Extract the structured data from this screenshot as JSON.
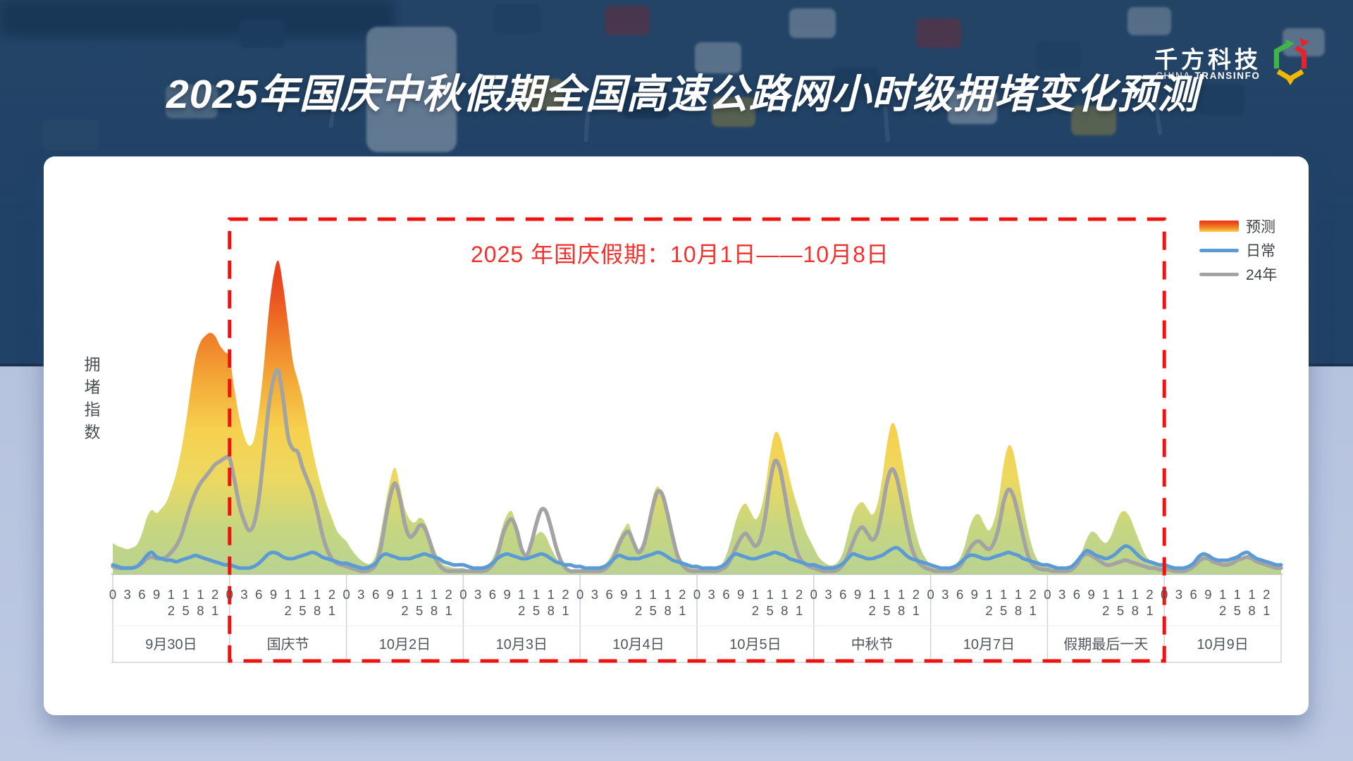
{
  "page": {
    "title": "2025年国庆中秋假期全国高速公路网小时级拥堵变化预测",
    "brand": {
      "name_cn": "千方科技",
      "name_en_light": "CHINA",
      "name_en_bold": "TRANSINFO"
    }
  },
  "chart": {
    "y_axis_label": "拥堵指数",
    "highlight_caption": "2025 年国庆假期：10月1日——10月8日",
    "hour_ticks": [
      "0",
      "3",
      "6",
      "9",
      "12",
      "15",
      "18",
      "21"
    ],
    "legend": [
      {
        "label": "预测",
        "type": "gradient"
      },
      {
        "label": "日常",
        "type": "line",
        "color": "#5b9bd5"
      },
      {
        "label": "24年",
        "type": "line",
        "color": "#a3a3a3"
      }
    ],
    "colors": {
      "highlight_red": "#ee1311",
      "caption_red": "#f2302c",
      "forecast_top": "#e93114",
      "forecast_orange": "#ef7a22",
      "forecast_yellow": "#f6cf49",
      "forecast_green": "#b7d18e",
      "daily_blue": "#5b9bd5",
      "y24_gray": "#a3a3a3"
    }
  },
  "chart_data": {
    "type": "area",
    "title": "2025年国庆中秋假期全国高速公路网小时级拥堵变化预测",
    "ylabel": "拥堵指数",
    "ylim": [
      0,
      10
    ],
    "hours_per_day": 24,
    "hour_tick_values": [
      0,
      3,
      6,
      9,
      12,
      15,
      18,
      21
    ],
    "days": [
      "9月30日",
      "国庆节",
      "10月2日",
      "10月3日",
      "10月4日",
      "10月5日",
      "中秋节",
      "10月7日",
      "假期最后一天",
      "10月9日"
    ],
    "highlight_range_days": {
      "start": "国庆节",
      "end": "假期最后一天"
    },
    "series": [
      {
        "name": "预测",
        "style": "area-gradient",
        "values": [
          1.0,
          0.9,
          0.85,
          0.8,
          0.85,
          0.95,
          1.3,
          1.8,
          2.05,
          1.95,
          2.1,
          2.3,
          2.7,
          3.2,
          3.9,
          4.8,
          5.9,
          6.9,
          7.4,
          7.6,
          7.7,
          7.6,
          7.3,
          7.1,
          6.9,
          5.9,
          5.0,
          4.4,
          4.1,
          4.3,
          5.2,
          6.6,
          8.3,
          9.5,
          10.0,
          9.2,
          8.0,
          6.8,
          6.2,
          5.6,
          4.8,
          4.0,
          3.3,
          2.7,
          2.2,
          1.8,
          1.4,
          1.2,
          1.05,
          0.8,
          0.6,
          0.45,
          0.35,
          0.35,
          0.6,
          1.3,
          2.2,
          3.0,
          3.4,
          2.8,
          2.1,
          1.75,
          1.65,
          1.8,
          1.7,
          1.3,
          0.85,
          0.5,
          0.3,
          0.25,
          0.2,
          0.2,
          0.2,
          0.15,
          0.15,
          0.15,
          0.2,
          0.3,
          0.5,
          0.9,
          1.5,
          1.9,
          2.0,
          1.5,
          0.9,
          0.65,
          1.0,
          1.25,
          1.35,
          1.2,
          0.85,
          0.55,
          0.35,
          0.2,
          0.15,
          0.15,
          0.15,
          0.15,
          0.15,
          0.15,
          0.2,
          0.3,
          0.5,
          0.8,
          1.15,
          1.45,
          1.6,
          1.1,
          0.8,
          1.1,
          1.7,
          2.5,
          2.8,
          2.4,
          1.7,
          1.1,
          0.6,
          0.35,
          0.25,
          0.2,
          0.2,
          0.15,
          0.15,
          0.15,
          0.2,
          0.3,
          0.6,
          1.1,
          1.7,
          2.1,
          2.25,
          2.0,
          1.75,
          2.0,
          2.7,
          3.8,
          4.5,
          4.4,
          3.8,
          3.1,
          2.5,
          2.0,
          1.5,
          1.15,
          0.85,
          0.55,
          0.4,
          0.3,
          0.3,
          0.4,
          0.7,
          1.3,
          1.9,
          2.2,
          2.3,
          2.1,
          1.9,
          2.2,
          3.0,
          4.1,
          4.8,
          4.6,
          3.8,
          2.9,
          2.0,
          1.3,
          0.8,
          0.5,
          0.3,
          0.2,
          0.15,
          0.15,
          0.2,
          0.3,
          0.5,
          0.9,
          1.5,
          1.85,
          1.9,
          1.6,
          1.4,
          1.7,
          2.4,
          3.5,
          4.1,
          3.9,
          3.1,
          2.2,
          1.4,
          0.8,
          0.45,
          0.3,
          0.25,
          0.2,
          0.15,
          0.15,
          0.15,
          0.25,
          0.4,
          0.7,
          1.1,
          1.35,
          1.3,
          1.1,
          1.0,
          1.2,
          1.6,
          1.95,
          2.0,
          1.8,
          1.4,
          1.0,
          0.65,
          0.45,
          0.35,
          0.3,
          0.3,
          0.25,
          0.2,
          0.2,
          0.2,
          0.25,
          0.35,
          0.5,
          0.6,
          0.6,
          0.5,
          0.45,
          0.4,
          0.4,
          0.45,
          0.5,
          0.55,
          0.6,
          0.6,
          0.5,
          0.45,
          0.4,
          0.35,
          0.3
        ]
      },
      {
        "name": "日常",
        "style": "line",
        "color": "#5b9bd5",
        "values": [
          0.3,
          0.25,
          0.2,
          0.2,
          0.2,
          0.25,
          0.4,
          0.6,
          0.7,
          0.55,
          0.5,
          0.45,
          0.45,
          0.4,
          0.45,
          0.5,
          0.55,
          0.6,
          0.55,
          0.5,
          0.45,
          0.4,
          0.35,
          0.3,
          0.3,
          0.25,
          0.2,
          0.2,
          0.2,
          0.25,
          0.35,
          0.5,
          0.65,
          0.7,
          0.65,
          0.55,
          0.5,
          0.5,
          0.55,
          0.6,
          0.65,
          0.7,
          0.65,
          0.55,
          0.5,
          0.45,
          0.4,
          0.35,
          0.35,
          0.3,
          0.25,
          0.2,
          0.2,
          0.25,
          0.35,
          0.55,
          0.65,
          0.6,
          0.55,
          0.5,
          0.5,
          0.5,
          0.55,
          0.6,
          0.65,
          0.6,
          0.55,
          0.5,
          0.4,
          0.35,
          0.3,
          0.3,
          0.3,
          0.25,
          0.2,
          0.2,
          0.2,
          0.25,
          0.35,
          0.5,
          0.6,
          0.65,
          0.6,
          0.55,
          0.5,
          0.5,
          0.55,
          0.6,
          0.65,
          0.6,
          0.5,
          0.4,
          0.35,
          0.3,
          0.3,
          0.25,
          0.25,
          0.2,
          0.2,
          0.2,
          0.2,
          0.25,
          0.35,
          0.5,
          0.6,
          0.55,
          0.5,
          0.5,
          0.5,
          0.55,
          0.6,
          0.65,
          0.7,
          0.65,
          0.55,
          0.45,
          0.4,
          0.35,
          0.3,
          0.25,
          0.25,
          0.2,
          0.2,
          0.2,
          0.2,
          0.25,
          0.35,
          0.55,
          0.65,
          0.6,
          0.55,
          0.5,
          0.5,
          0.55,
          0.6,
          0.65,
          0.7,
          0.65,
          0.6,
          0.5,
          0.45,
          0.4,
          0.35,
          0.3,
          0.3,
          0.25,
          0.2,
          0.2,
          0.2,
          0.25,
          0.35,
          0.5,
          0.65,
          0.6,
          0.55,
          0.5,
          0.5,
          0.55,
          0.6,
          0.7,
          0.8,
          0.85,
          0.75,
          0.6,
          0.5,
          0.45,
          0.4,
          0.35,
          0.3,
          0.25,
          0.2,
          0.2,
          0.2,
          0.25,
          0.35,
          0.5,
          0.6,
          0.6,
          0.55,
          0.5,
          0.5,
          0.55,
          0.6,
          0.65,
          0.7,
          0.65,
          0.6,
          0.5,
          0.45,
          0.4,
          0.35,
          0.3,
          0.3,
          0.25,
          0.2,
          0.2,
          0.2,
          0.25,
          0.4,
          0.6,
          0.75,
          0.7,
          0.6,
          0.55,
          0.5,
          0.55,
          0.65,
          0.8,
          0.9,
          0.85,
          0.7,
          0.55,
          0.45,
          0.4,
          0.35,
          0.3,
          0.3,
          0.25,
          0.2,
          0.2,
          0.2,
          0.25,
          0.35,
          0.55,
          0.65,
          0.6,
          0.5,
          0.45,
          0.45,
          0.45,
          0.5,
          0.55,
          0.65,
          0.7,
          0.6,
          0.5,
          0.45,
          0.4,
          0.35,
          0.3
        ]
      },
      {
        "name": "24年",
        "style": "line",
        "color": "#a3a3a3",
        "values": [
          0.25,
          0.2,
          0.2,
          0.2,
          0.2,
          0.25,
          0.35,
          0.5,
          0.55,
          0.5,
          0.5,
          0.55,
          0.7,
          0.9,
          1.2,
          1.7,
          2.2,
          2.6,
          2.9,
          3.1,
          3.3,
          3.5,
          3.6,
          3.7,
          3.7,
          3.0,
          2.2,
          1.7,
          1.4,
          1.6,
          2.4,
          3.8,
          5.3,
          6.2,
          6.5,
          5.6,
          4.4,
          4.0,
          3.9,
          3.4,
          3.0,
          2.6,
          2.0,
          1.3,
          0.8,
          0.5,
          0.35,
          0.3,
          0.25,
          0.2,
          0.15,
          0.1,
          0.1,
          0.15,
          0.3,
          0.8,
          1.7,
          2.5,
          2.9,
          2.4,
          1.6,
          1.2,
          1.3,
          1.55,
          1.5,
          1.1,
          0.6,
          0.3,
          0.15,
          0.1,
          0.1,
          0.1,
          0.1,
          0.1,
          0.1,
          0.1,
          0.1,
          0.15,
          0.3,
          0.6,
          1.2,
          1.6,
          1.75,
          1.4,
          0.8,
          0.6,
          1.0,
          1.6,
          2.05,
          2.0,
          1.5,
          0.9,
          0.45,
          0.2,
          0.1,
          0.1,
          0.1,
          0.1,
          0.1,
          0.1,
          0.1,
          0.15,
          0.3,
          0.55,
          0.95,
          1.25,
          1.35,
          1.0,
          0.7,
          0.9,
          1.5,
          2.2,
          2.65,
          2.5,
          1.9,
          1.2,
          0.6,
          0.3,
          0.15,
          0.1,
          0.1,
          0.1,
          0.1,
          0.1,
          0.1,
          0.15,
          0.25,
          0.5,
          0.85,
          1.15,
          1.3,
          1.1,
          0.9,
          1.1,
          1.8,
          2.9,
          3.6,
          3.4,
          2.6,
          1.7,
          1.0,
          0.55,
          0.35,
          0.25,
          0.2,
          0.15,
          0.1,
          0.1,
          0.1,
          0.15,
          0.3,
          0.6,
          1.0,
          1.35,
          1.5,
          1.3,
          1.1,
          1.3,
          2.0,
          2.9,
          3.35,
          3.1,
          2.4,
          1.6,
          0.9,
          0.5,
          0.3,
          0.2,
          0.15,
          0.1,
          0.1,
          0.1,
          0.1,
          0.15,
          0.25,
          0.5,
          0.8,
          1.0,
          1.05,
          0.9,
          0.8,
          1.0,
          1.5,
          2.3,
          2.7,
          2.5,
          1.9,
          1.2,
          0.6,
          0.3,
          0.2,
          0.15,
          0.15,
          0.1,
          0.1,
          0.1,
          0.1,
          0.15,
          0.3,
          0.55,
          0.65,
          0.6,
          0.5,
          0.4,
          0.3,
          0.3,
          0.35,
          0.4,
          0.45,
          0.4,
          0.35,
          0.3,
          0.25,
          0.2,
          0.2,
          0.15,
          0.15,
          0.15,
          0.1,
          0.1,
          0.1,
          0.15,
          0.25,
          0.4,
          0.5,
          0.5,
          0.4,
          0.35,
          0.3,
          0.3,
          0.35,
          0.45,
          0.5,
          0.55,
          0.5,
          0.4,
          0.35,
          0.3,
          0.25,
          0.2
        ]
      }
    ]
  }
}
